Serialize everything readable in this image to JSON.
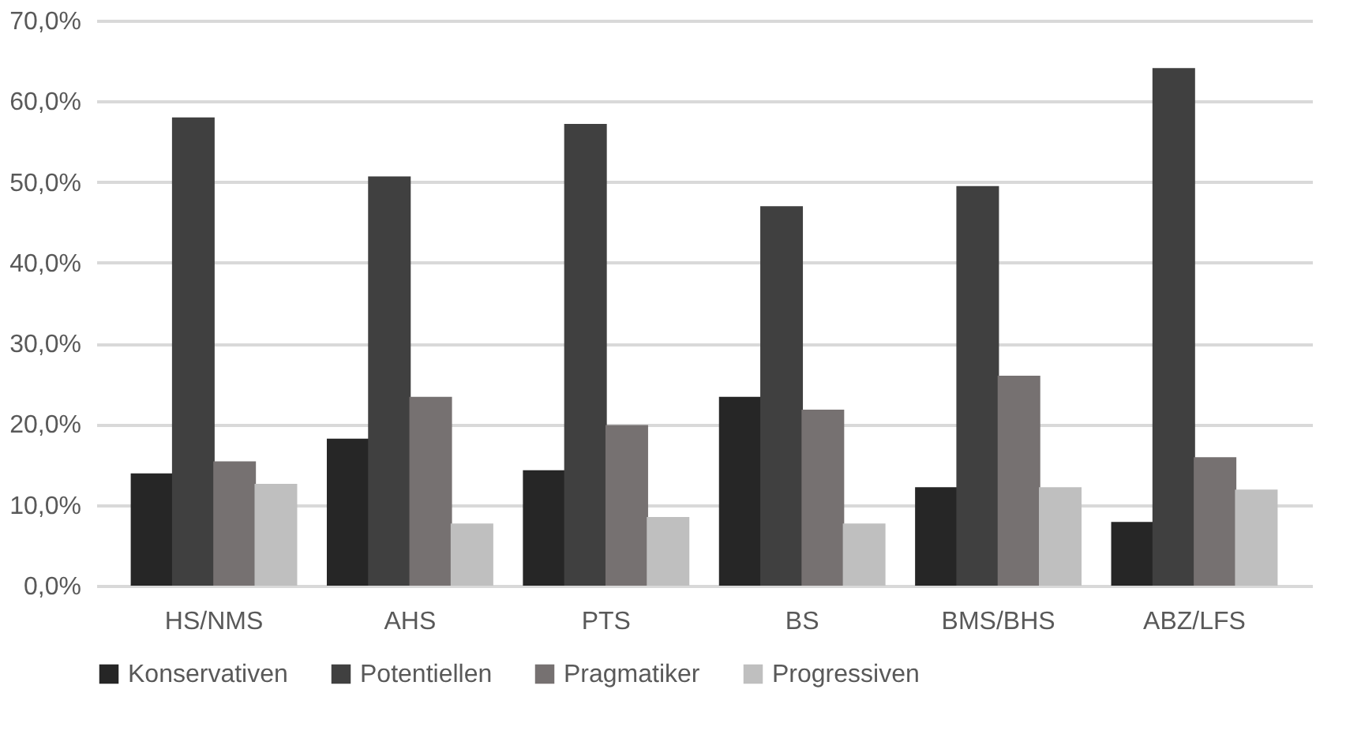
{
  "chart_data": {
    "type": "bar",
    "categories": [
      "HS/NMS",
      "AHS",
      "PTS",
      "BS",
      "BMS/BHS",
      "ABZ/LFS"
    ],
    "series": [
      {
        "name": "Konservativen",
        "color": "#262626",
        "values": [
          13.9,
          18.2,
          14.3,
          23.4,
          12.2,
          7.9
        ]
      },
      {
        "name": "Potentiellen",
        "color": "#404040",
        "values": [
          58.0,
          50.7,
          57.2,
          47.0,
          49.5,
          64.1
        ]
      },
      {
        "name": "Pragmatiker",
        "color": "#767171",
        "values": [
          15.4,
          23.4,
          19.9,
          21.8,
          26.0,
          15.9
        ]
      },
      {
        "name": "Progressiven",
        "color": "#bfbfbf",
        "values": [
          12.6,
          7.7,
          8.5,
          7.7,
          12.2,
          11.9
        ]
      }
    ],
    "ylim": [
      0,
      70
    ],
    "yticks": [
      {
        "value": 0,
        "label": "0,0%"
      },
      {
        "value": 10,
        "label": "10,0%"
      },
      {
        "value": 20,
        "label": "20,0%"
      },
      {
        "value": 30,
        "label": "30,0%"
      },
      {
        "value": 40,
        "label": "40,0%"
      },
      {
        "value": 50,
        "label": "50,0%"
      },
      {
        "value": 60,
        "label": "60,0%"
      },
      {
        "value": 70,
        "label": "70,0%"
      }
    ],
    "grid": "y",
    "legend": "bottom"
  }
}
